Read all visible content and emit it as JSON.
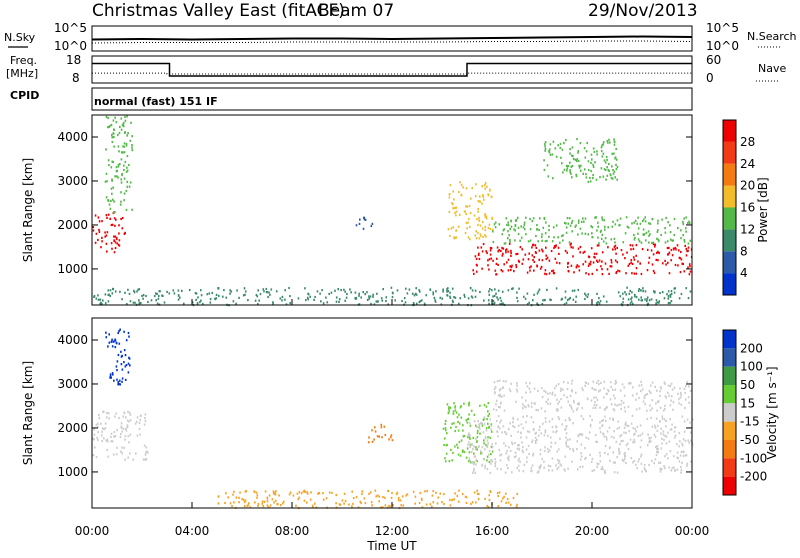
{
  "header": {
    "title": "Christmas Valley East (fitACF)",
    "beam": "Beam 07",
    "date": "29/Nov/2013",
    "mode": "normal (fast) 151 IF"
  },
  "left_labels": {
    "nsky": "N.Sky",
    "freq": "Freq.",
    "freq_unit": "[MHz]",
    "cpid": "CPID"
  },
  "right_labels": {
    "nsearch": "N.Search",
    "nave": "Nave"
  },
  "chart_data": [
    {
      "type": "line",
      "name": "noise",
      "left_ticks": [
        "10^5",
        "10^0"
      ],
      "right_ticks": [
        "10^5",
        "10^0"
      ],
      "x": [
        0,
        2,
        4,
        6,
        8,
        10,
        12,
        14,
        16,
        18,
        20,
        22,
        24
      ],
      "series": [
        {
          "name": "N.Sky",
          "values": [
            2.3,
            2.4,
            2.3,
            2.4,
            2.5,
            2.5,
            2.4,
            2.5,
            2.6,
            2.7,
            2.8,
            2.9,
            2.8
          ]
        },
        {
          "name": "N.Search",
          "values": [
            1.6,
            1.7,
            1.7,
            1.7,
            1.8,
            1.8,
            1.8,
            1.8,
            1.9,
            1.9,
            2.0,
            2.0,
            1.9
          ]
        }
      ],
      "ylim": [
        0,
        5
      ]
    },
    {
      "type": "line",
      "name": "frequency_nave",
      "left_ticks": [
        "18",
        "8"
      ],
      "right_ticks": [
        "60",
        "0"
      ],
      "freq_steps": [
        [
          0,
          15.2
        ],
        [
          3.1,
          15.2
        ],
        [
          3.1,
          10.6
        ],
        [
          15.0,
          10.6
        ],
        [
          15.0,
          15.2
        ],
        [
          24,
          15.2
        ]
      ],
      "freq_ylim": [
        8,
        18
      ],
      "nave_values": [
        [
          0,
          22
        ],
        [
          3,
          22
        ],
        [
          3,
          20
        ],
        [
          15,
          20
        ],
        [
          15,
          22
        ],
        [
          24,
          22
        ]
      ],
      "nave_ylim": [
        0,
        60
      ]
    },
    {
      "type": "heatmap",
      "name": "power",
      "ylabel": "Slant Range [km]",
      "yticks": [
        1000,
        2000,
        3000,
        4000
      ],
      "ylim": [
        180,
        4500
      ],
      "xlim": [
        0,
        24
      ],
      "colorbar_label": "Power [dB]",
      "colorbar_ticks": [
        4,
        8,
        12,
        16,
        20,
        24,
        28
      ],
      "colorbar_colors": [
        "#0033cc",
        "#2a5aa8",
        "#3a8a6a",
        "#52b847",
        "#f2bc2b",
        "#f47b12",
        "#f23a14",
        "#ee0000"
      ],
      "scatter_regions": [
        {
          "t": [
            0.0,
            1.3
          ],
          "r": [
            1400,
            2300
          ],
          "level": 28
        },
        {
          "t": [
            0.5,
            1.6
          ],
          "r": [
            2300,
            4500
          ],
          "level": 12
        },
        {
          "t": [
            0.0,
            24.0
          ],
          "r": [
            200,
            600
          ],
          "level": 8
        },
        {
          "t": [
            14.2,
            16.0
          ],
          "r": [
            1700,
            3000
          ],
          "level": 16
        },
        {
          "t": [
            15.2,
            24.0
          ],
          "r": [
            900,
            1600
          ],
          "level": 28
        },
        {
          "t": [
            16.0,
            24.0
          ],
          "r": [
            1600,
            2200
          ],
          "level": 12
        },
        {
          "t": [
            10.5,
            11.2
          ],
          "r": [
            1900,
            2200
          ],
          "level": 4
        },
        {
          "t": [
            18.0,
            21.0
          ],
          "r": [
            3000,
            4000
          ],
          "level": 12
        }
      ]
    },
    {
      "type": "heatmap",
      "name": "velocity",
      "ylabel": "Slant Range [km]",
      "yticks": [
        1000,
        2000,
        3000,
        4000
      ],
      "ylim": [
        180,
        4500
      ],
      "xlim": [
        0,
        24
      ],
      "xlabel": "Time UT",
      "xticks": [
        "00:00",
        "04:00",
        "08:00",
        "12:00",
        "16:00",
        "20:00",
        "00:00"
      ],
      "colorbar_label": "Velocity [m s⁻¹]",
      "colorbar_ticks": [
        "200",
        "100",
        "50",
        "15",
        "-15",
        "-50",
        "-100",
        "-200"
      ],
      "colorbar_colors": [
        "#0033cc",
        "#2a5aa8",
        "#3f9a46",
        "#66cc33",
        "#cccccc",
        "#f7a223",
        "#f47b12",
        "#f23a14",
        "#ee0000"
      ],
      "scatter_regions": [
        {
          "t": [
            0.0,
            2.2
          ],
          "r": [
            1300,
            2400
          ],
          "level": "0"
        },
        {
          "t": [
            0.5,
            1.5
          ],
          "r": [
            3000,
            4300
          ],
          "level": "200"
        },
        {
          "t": [
            5.0,
            17.0
          ],
          "r": [
            200,
            600
          ],
          "level": "-50"
        },
        {
          "t": [
            14.0,
            16.0
          ],
          "r": [
            1200,
            2600
          ],
          "level": "15"
        },
        {
          "t": [
            15.0,
            24.0
          ],
          "r": [
            1000,
            2300
          ],
          "level": "0"
        },
        {
          "t": [
            16.0,
            24.0
          ],
          "r": [
            2400,
            3100
          ],
          "level": "0"
        },
        {
          "t": [
            11.0,
            12.0
          ],
          "r": [
            1700,
            2100
          ],
          "level": "-100"
        }
      ]
    }
  ]
}
